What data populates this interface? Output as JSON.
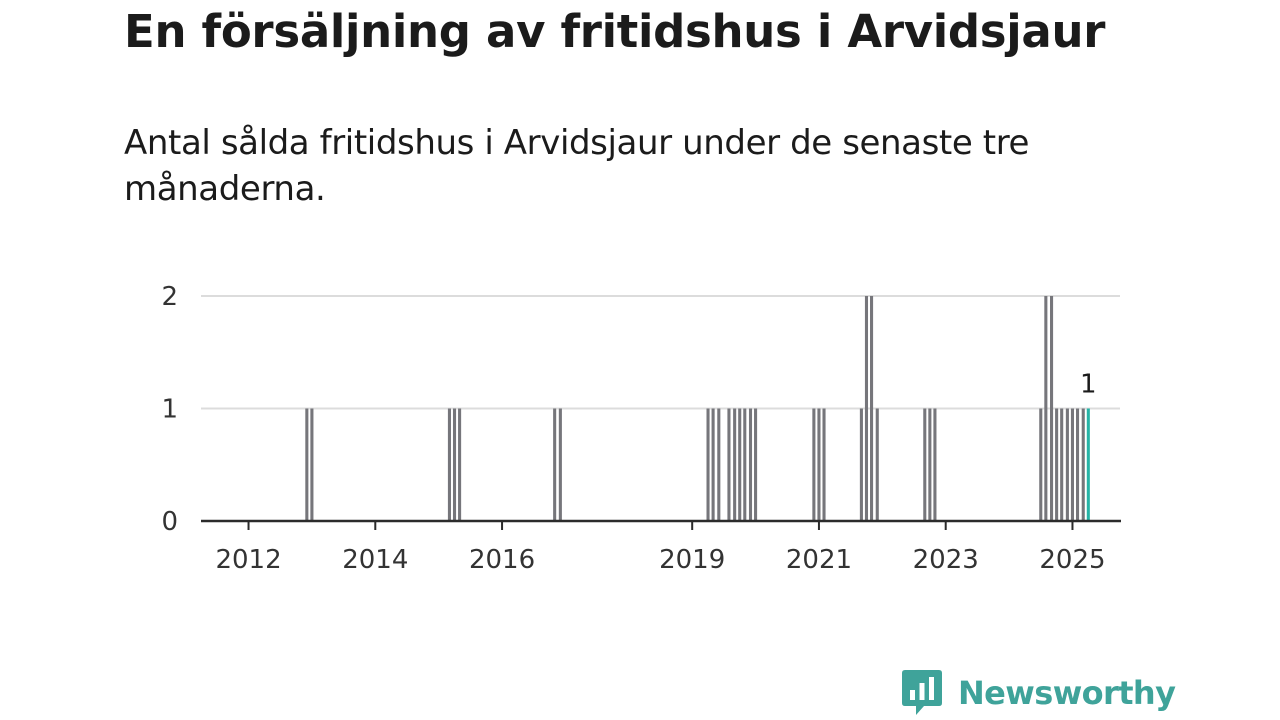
{
  "header": {
    "title": "En försäljning av fritidshus i Arvidsjaur",
    "subtitle": "Antal sålda fritidshus i Arvidsjaur under de senaste tre månaderna."
  },
  "brand": {
    "name": "Newsworthy",
    "color": "#3fa39a"
  },
  "chart_data": {
    "type": "bar",
    "title": "En försäljning av fritidshus i Arvidsjaur",
    "subtitle": "Antal sålda fritidshus i Arvidsjaur under de senaste tre månaderna.",
    "xlabel": "",
    "ylabel": "",
    "x_unit": "decimal year (month-end)",
    "xlim": [
      2011.25,
      2025.75
    ],
    "ylim": [
      0,
      2
    ],
    "y_ticks": [
      0,
      1,
      2
    ],
    "x_ticks": [
      "2012",
      "2014",
      "2016",
      "2019",
      "2021",
      "2023",
      "2025"
    ],
    "grid": "horizontal",
    "colors": {
      "bar": "#76767b",
      "highlight": "#25b3a6",
      "gridline": "#dcdcdc",
      "axis": "#2b2b2b"
    },
    "highlight_label": "1",
    "bars": [
      {
        "x": 2012.92,
        "y": 1
      },
      {
        "x": 2013.0,
        "y": 1
      },
      {
        "x": 2015.17,
        "y": 1
      },
      {
        "x": 2015.25,
        "y": 1
      },
      {
        "x": 2015.33,
        "y": 1
      },
      {
        "x": 2016.83,
        "y": 1
      },
      {
        "x": 2016.92,
        "y": 1
      },
      {
        "x": 2019.25,
        "y": 1
      },
      {
        "x": 2019.33,
        "y": 1
      },
      {
        "x": 2019.42,
        "y": 1
      },
      {
        "x": 2019.58,
        "y": 1
      },
      {
        "x": 2019.67,
        "y": 1
      },
      {
        "x": 2019.75,
        "y": 1
      },
      {
        "x": 2019.83,
        "y": 1
      },
      {
        "x": 2019.92,
        "y": 1
      },
      {
        "x": 2020.0,
        "y": 1
      },
      {
        "x": 2020.92,
        "y": 1
      },
      {
        "x": 2021.0,
        "y": 1
      },
      {
        "x": 2021.08,
        "y": 1
      },
      {
        "x": 2021.67,
        "y": 1
      },
      {
        "x": 2021.75,
        "y": 2
      },
      {
        "x": 2021.83,
        "y": 2
      },
      {
        "x": 2021.92,
        "y": 1
      },
      {
        "x": 2022.67,
        "y": 1
      },
      {
        "x": 2022.75,
        "y": 1
      },
      {
        "x": 2022.83,
        "y": 1
      },
      {
        "x": 2024.5,
        "y": 1
      },
      {
        "x": 2024.58,
        "y": 2
      },
      {
        "x": 2024.67,
        "y": 2
      },
      {
        "x": 2024.75,
        "y": 1
      },
      {
        "x": 2024.83,
        "y": 1
      },
      {
        "x": 2024.92,
        "y": 1
      },
      {
        "x": 2025.0,
        "y": 1
      },
      {
        "x": 2025.08,
        "y": 1
      },
      {
        "x": 2025.17,
        "y": 1
      },
      {
        "x": 2025.25,
        "y": 1,
        "highlight": true
      }
    ]
  }
}
